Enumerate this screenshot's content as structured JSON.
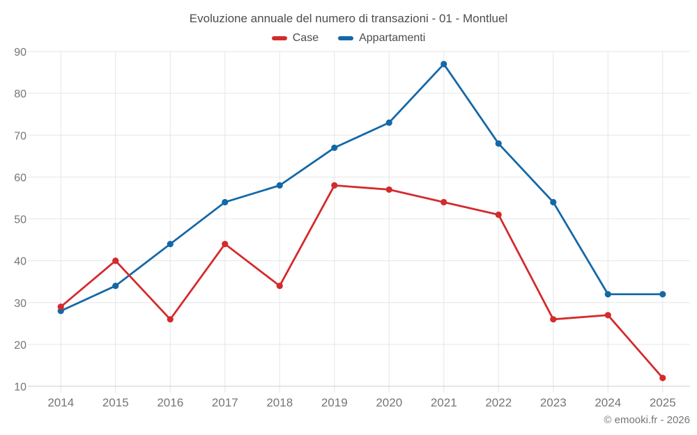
{
  "chart": {
    "title": "Evoluzione annuale del numero di transazioni - 01 - Montluel",
    "footer": "© emooki.fr - 2026"
  },
  "chart_data": {
    "type": "line",
    "title": "Evoluzione annuale del numero di transazioni - 01 - Montluel",
    "categories": [
      "2014",
      "2015",
      "2016",
      "2017",
      "2018",
      "2019",
      "2020",
      "2021",
      "2022",
      "2023",
      "2024",
      "2025"
    ],
    "series": [
      {
        "name": "Case",
        "color": "#d42a2c",
        "values": [
          29,
          40,
          26,
          44,
          34,
          58,
          57,
          54,
          51,
          26,
          27,
          12
        ]
      },
      {
        "name": "Appartamenti",
        "color": "#1468a6",
        "values": [
          28,
          34,
          44,
          54,
          58,
          67,
          73,
          87,
          68,
          54,
          32,
          32
        ]
      }
    ],
    "xlabel": "",
    "ylabel": "",
    "ylim": [
      10,
      90
    ],
    "ytick_step": 10,
    "grid": true,
    "legend_position": "top"
  },
  "colors": {
    "grid": "#e6e6e6",
    "axis": "#cccccc",
    "tick_label": "#757575",
    "title_text": "#4c4c4c",
    "background": "#ffffff"
  }
}
